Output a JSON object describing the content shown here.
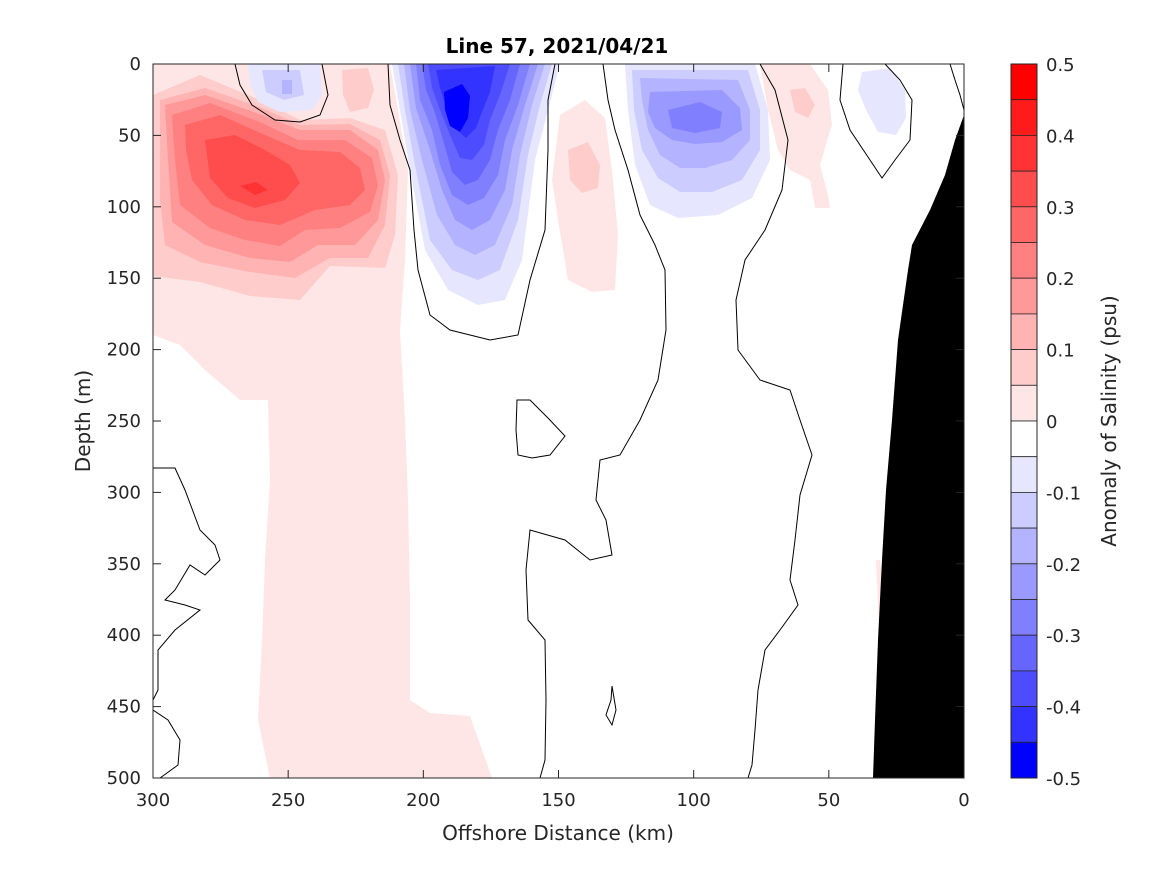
{
  "chart_data": {
    "type": "heatmap",
    "subtype": "filled-contour",
    "title": "Line 57, 2021/04/21",
    "xlabel": "Offshore Distance (km)",
    "ylabel": "Depth (m)",
    "xlim": [
      300,
      0
    ],
    "ylim": [
      0,
      500
    ],
    "x_reversed": true,
    "y_reversed": true,
    "xticks": [
      "300",
      "250",
      "200",
      "150",
      "100",
      "50",
      "0"
    ],
    "yticks": [
      "0",
      "50",
      "100",
      "150",
      "200",
      "250",
      "300",
      "350",
      "400",
      "450",
      "500"
    ],
    "colorbar": {
      "label": "Anomaly of Salinity (psu)",
      "range": [
        -0.5,
        0.5
      ],
      "tick_labels": [
        "0.5",
        "0.4",
        "0.3",
        "0.2",
        "0.1",
        "0",
        "-0.1",
        "-0.2",
        "-0.3",
        "-0.4",
        "-0.5"
      ],
      "levels": [
        {
          "min": 0.45,
          "max": 0.5,
          "color": "#ff0000"
        },
        {
          "min": 0.4,
          "max": 0.45,
          "color": "#ff1b1b"
        },
        {
          "min": 0.35,
          "max": 0.4,
          "color": "#ff3333"
        },
        {
          "min": 0.3,
          "max": 0.35,
          "color": "#ff4d4d"
        },
        {
          "min": 0.25,
          "max": 0.3,
          "color": "#ff6666"
        },
        {
          "min": 0.2,
          "max": 0.25,
          "color": "#ff8080"
        },
        {
          "min": 0.15,
          "max": 0.2,
          "color": "#ff9999"
        },
        {
          "min": 0.1,
          "max": 0.15,
          "color": "#ffb3b3"
        },
        {
          "min": 0.05,
          "max": 0.1,
          "color": "#ffcccc"
        },
        {
          "min": 0.0,
          "max": 0.05,
          "color": "#ffe6e6"
        },
        {
          "min": -0.05,
          "max": 0.0,
          "color": "#ffffff"
        },
        {
          "min": -0.1,
          "max": -0.05,
          "color": "#e6e6ff"
        },
        {
          "min": -0.15,
          "max": -0.1,
          "color": "#ccccff"
        },
        {
          "min": -0.2,
          "max": -0.15,
          "color": "#b3b3ff"
        },
        {
          "min": -0.25,
          "max": -0.2,
          "color": "#9999ff"
        },
        {
          "min": -0.3,
          "max": -0.25,
          "color": "#8080ff"
        },
        {
          "min": -0.35,
          "max": -0.3,
          "color": "#6666ff"
        },
        {
          "min": -0.4,
          "max": -0.35,
          "color": "#4d4dff"
        },
        {
          "min": -0.45,
          "max": -0.4,
          "color": "#3333ff"
        },
        {
          "min": -0.5,
          "max": -0.45,
          "color": "#0000ff"
        }
      ]
    },
    "features": [
      {
        "kind": "salty-core",
        "center": [
          268,
          90
        ],
        "peak_anomaly": 0.4
      },
      {
        "kind": "salty-patch",
        "center": [
          225,
          20
        ],
        "peak_anomaly": 0.15
      },
      {
        "kind": "salty-patch",
        "center": [
          135,
          80
        ],
        "peak_anomaly": 0.15
      },
      {
        "kind": "salty-patch",
        "center": [
          62,
          25
        ],
        "peak_anomaly": 0.15
      },
      {
        "kind": "fresh-core",
        "center": [
          187,
          35
        ],
        "peak_anomaly": -0.45
      },
      {
        "kind": "fresh-patch",
        "center": [
          255,
          15
        ],
        "peak_anomaly": -0.2
      },
      {
        "kind": "fresh-core",
        "center": [
          97,
          40
        ],
        "peak_anomaly": -0.3
      },
      {
        "kind": "fresh-patch",
        "center": [
          30,
          30
        ],
        "peak_anomaly": -0.1
      }
    ],
    "bathymetry_color": "#000000",
    "contour_line_color": "#000000"
  }
}
